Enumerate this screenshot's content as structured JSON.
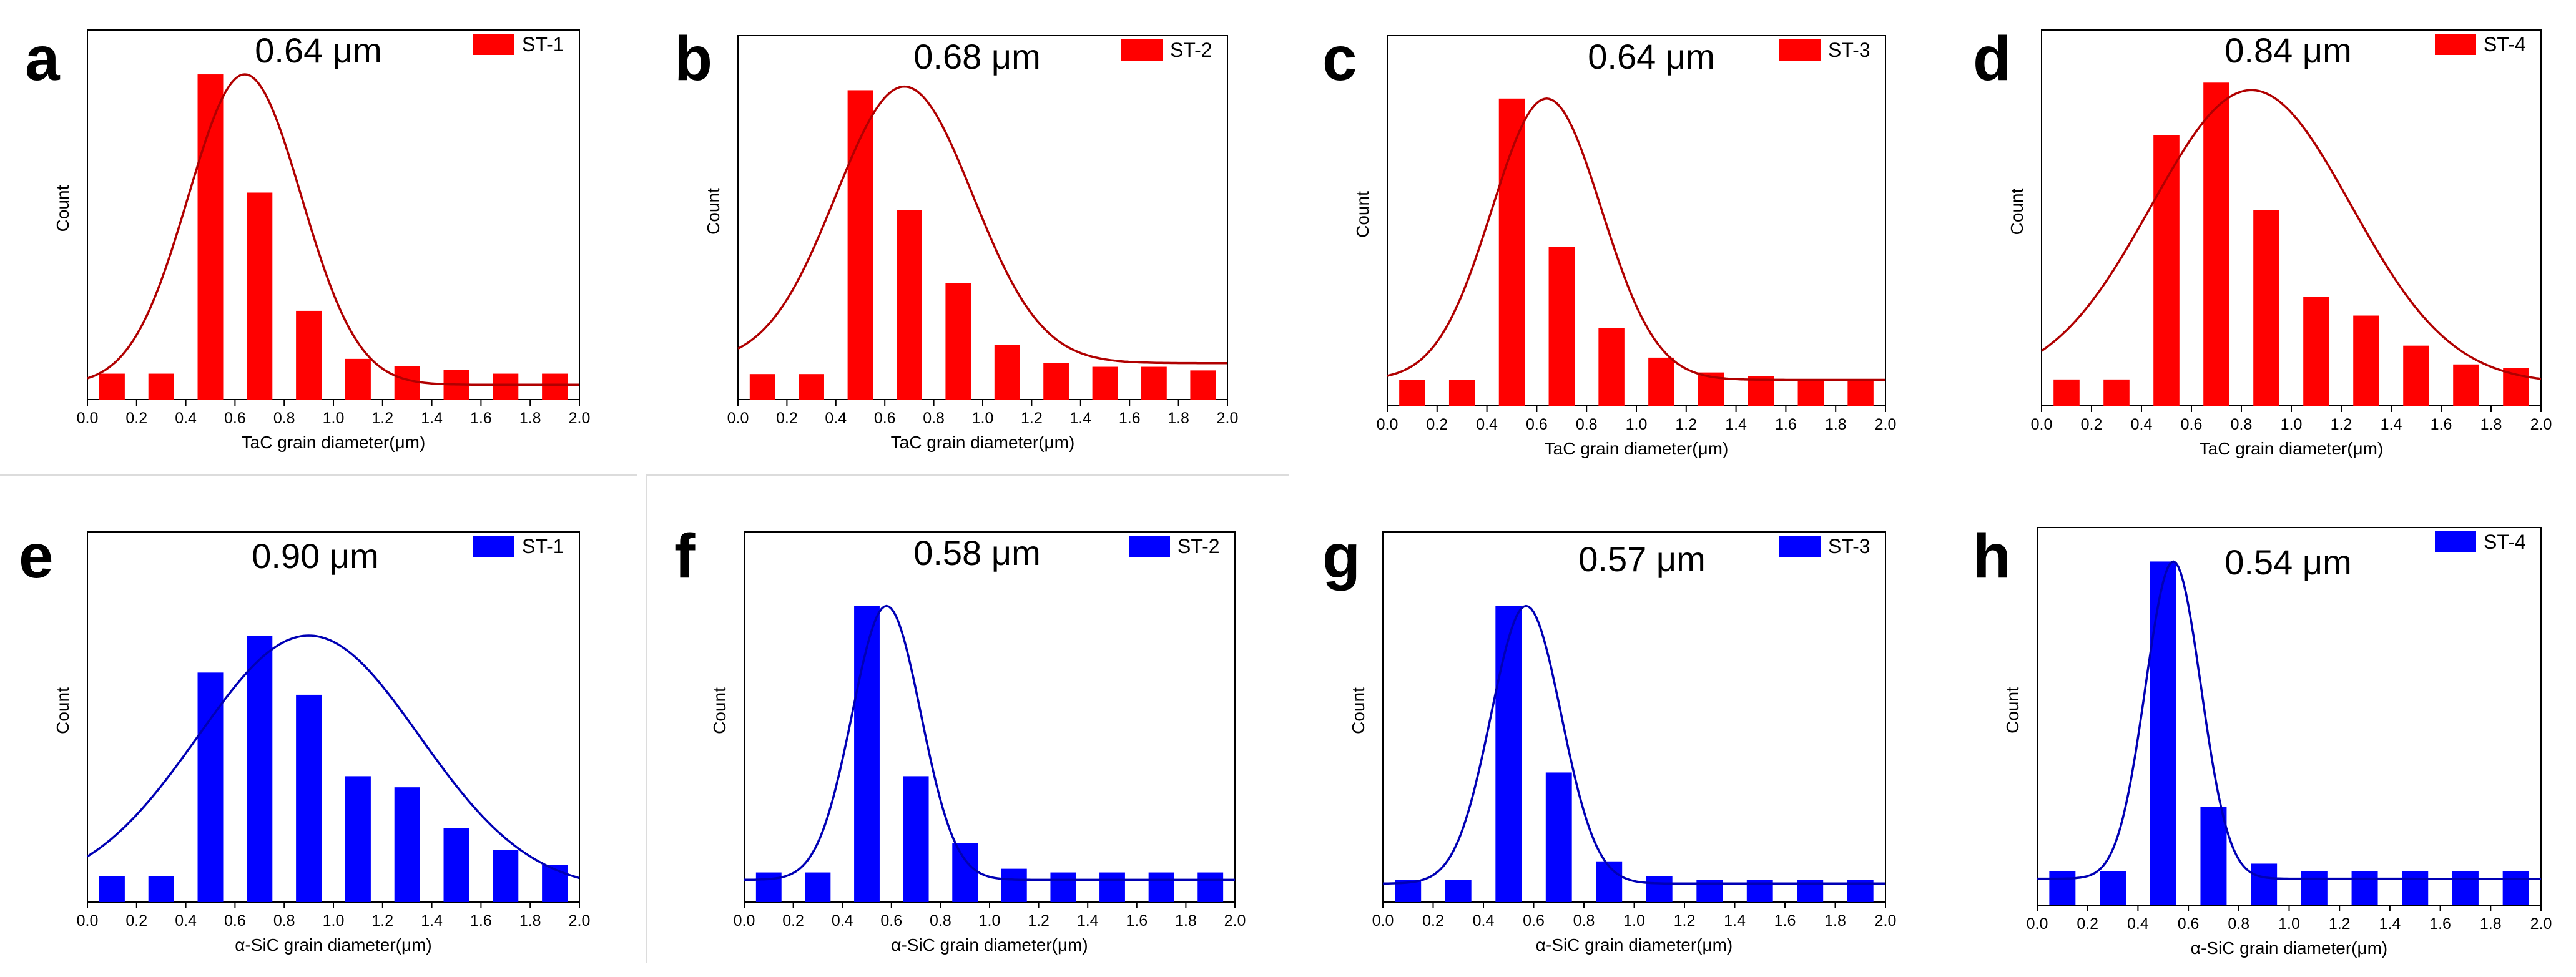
{
  "chart_data": [
    {
      "panel": "a",
      "type": "bar",
      "title": "0.64 μm",
      "legend": "ST-1",
      "color": "#ff0000",
      "xlabel": "TaC grain diameter(μm)",
      "ylabel": "Count",
      "xlim": [
        0.0,
        2.0
      ],
      "ylim": [
        0,
        100
      ],
      "x_ticks": [
        "0.0",
        "0.2",
        "0.4",
        "0.6",
        "0.8",
        "1.0",
        "1.2",
        "1.4",
        "1.6",
        "1.8",
        "2.0"
      ],
      "bin_centers": [
        0.1,
        0.3,
        0.5,
        0.7,
        0.9,
        1.1,
        1.3,
        1.5,
        1.7,
        1.9
      ],
      "values": [
        7,
        7,
        88,
        56,
        24,
        11,
        9,
        8,
        7,
        7
      ],
      "fit": {
        "type": "gaussian",
        "mean": 0.64,
        "sigma": 0.23,
        "peak": 88,
        "baseline": 4
      }
    },
    {
      "panel": "b",
      "type": "bar",
      "title": "0.68 μm",
      "legend": "ST-2",
      "color": "#ff0000",
      "xlabel": "TaC grain diameter(μm)",
      "ylabel": "Count",
      "xlim": [
        0.0,
        2.0
      ],
      "ylim": [
        0,
        100
      ],
      "x_ticks": [
        "0.0",
        "0.2",
        "0.4",
        "0.6",
        "0.8",
        "1.0",
        "1.2",
        "1.4",
        "1.6",
        "1.8",
        "2.0"
      ],
      "bin_centers": [
        0.1,
        0.3,
        0.5,
        0.7,
        0.9,
        1.1,
        1.3,
        1.5,
        1.7,
        1.9
      ],
      "values": [
        7,
        7,
        85,
        52,
        32,
        15,
        10,
        9,
        9,
        8
      ],
      "fit": {
        "type": "gaussian",
        "mean": 0.68,
        "sigma": 0.28,
        "peak": 86,
        "baseline": 10
      }
    },
    {
      "panel": "c",
      "type": "bar",
      "title": "0.64 μm",
      "legend": "ST-3",
      "color": "#ff0000",
      "xlabel": "TaC grain diameter(μm)",
      "ylabel": "Count",
      "xlim": [
        0.0,
        2.0
      ],
      "ylim": [
        0,
        100
      ],
      "x_ticks": [
        "0.0",
        "0.2",
        "0.4",
        "0.6",
        "0.8",
        "1.0",
        "1.2",
        "1.4",
        "1.6",
        "1.8",
        "2.0"
      ],
      "bin_centers": [
        0.1,
        0.3,
        0.5,
        0.7,
        0.9,
        1.1,
        1.3,
        1.5,
        1.7,
        1.9
      ],
      "values": [
        7,
        7,
        83,
        43,
        21,
        13,
        9,
        8,
        7,
        7
      ],
      "fit": {
        "type": "gaussian",
        "mean": 0.64,
        "sigma": 0.22,
        "peak": 83,
        "baseline": 7
      }
    },
    {
      "panel": "d",
      "type": "bar",
      "title": "0.84 μm",
      "legend": "ST-4",
      "color": "#ff0000",
      "xlabel": "TaC grain diameter(μm)",
      "ylabel": "Count",
      "xlim": [
        0.0,
        2.0
      ],
      "ylim": [
        0,
        100
      ],
      "x_ticks": [
        "0.0",
        "0.2",
        "0.4",
        "0.6",
        "0.8",
        "1.0",
        "1.2",
        "1.4",
        "1.6",
        "1.8",
        "2.0"
      ],
      "bin_centers": [
        0.1,
        0.3,
        0.5,
        0.7,
        0.9,
        1.1,
        1.3,
        1.5,
        1.7,
        1.9
      ],
      "values": [
        7,
        7,
        72,
        86,
        52,
        29,
        24,
        16,
        11,
        10
      ],
      "fit": {
        "type": "gaussian",
        "mean": 0.84,
        "sigma": 0.4,
        "peak": 84,
        "baseline": 6
      }
    },
    {
      "panel": "e",
      "type": "bar",
      "title": "0.90 μm",
      "legend": "ST-1",
      "color": "#0000ff",
      "xlabel": "α-SiC grain diameter(μm)",
      "ylabel": "Count",
      "xlim": [
        0.0,
        2.0
      ],
      "ylim": [
        0,
        100
      ],
      "x_ticks": [
        "0.0",
        "0.2",
        "0.4",
        "0.6",
        "0.8",
        "1.0",
        "1.2",
        "1.4",
        "1.6",
        "1.8",
        "2.0"
      ],
      "bin_centers": [
        0.1,
        0.3,
        0.5,
        0.7,
        0.9,
        1.1,
        1.3,
        1.5,
        1.7,
        1.9
      ],
      "values": [
        7,
        7,
        62,
        72,
        56,
        34,
        31,
        20,
        14,
        10
      ],
      "fit": {
        "type": "gaussian",
        "mean": 0.9,
        "sigma": 0.45,
        "peak": 72,
        "baseline": 3
      }
    },
    {
      "panel": "f",
      "type": "bar",
      "title": "0.58 μm",
      "legend": "ST-2",
      "color": "#0000ff",
      "xlabel": "α-SiC grain diameter(μm)",
      "ylabel": "Count",
      "xlim": [
        0.0,
        2.0
      ],
      "ylim": [
        0,
        100
      ],
      "x_ticks": [
        "0.0",
        "0.2",
        "0.4",
        "0.6",
        "0.8",
        "1.0",
        "1.2",
        "1.4",
        "1.6",
        "1.8",
        "2.0"
      ],
      "bin_centers": [
        0.1,
        0.3,
        0.5,
        0.7,
        0.9,
        1.1,
        1.3,
        1.5,
        1.7,
        1.9
      ],
      "values": [
        8,
        8,
        80,
        34,
        16,
        9,
        8,
        8,
        8,
        8
      ],
      "fit": {
        "type": "gaussian",
        "mean": 0.58,
        "sigma": 0.14,
        "peak": 80,
        "baseline": 6
      }
    },
    {
      "panel": "g",
      "type": "bar",
      "title": "0.57 μm",
      "legend": "ST-3",
      "color": "#0000ff",
      "xlabel": "α-SiC grain diameter(μm)",
      "ylabel": "Count",
      "xlim": [
        0.0,
        2.0
      ],
      "ylim": [
        0,
        100
      ],
      "x_ticks": [
        "0.0",
        "0.2",
        "0.4",
        "0.6",
        "0.8",
        "1.0",
        "1.2",
        "1.4",
        "1.6",
        "1.8",
        "2.0"
      ],
      "bin_centers": [
        0.1,
        0.3,
        0.5,
        0.7,
        0.9,
        1.1,
        1.3,
        1.5,
        1.7,
        1.9
      ],
      "values": [
        6,
        6,
        80,
        35,
        11,
        7,
        6,
        6,
        6,
        6
      ],
      "fit": {
        "type": "gaussian",
        "mean": 0.57,
        "sigma": 0.14,
        "peak": 80,
        "baseline": 5
      }
    },
    {
      "panel": "h",
      "type": "bar",
      "title": "0.54 μm",
      "legend": "ST-4",
      "color": "#0000ff",
      "xlabel": "α-SiC grain diameter(μm)",
      "ylabel": "Count",
      "xlim": [
        0.0,
        2.0
      ],
      "ylim": [
        0,
        100
      ],
      "x_ticks": [
        "0.0",
        "0.2",
        "0.4",
        "0.6",
        "0.8",
        "1.0",
        "1.2",
        "1.4",
        "1.6",
        "1.8",
        "2.0"
      ],
      "bin_centers": [
        0.1,
        0.3,
        0.5,
        0.7,
        0.9,
        1.1,
        1.3,
        1.5,
        1.7,
        1.9
      ],
      "values": [
        9,
        9,
        91,
        26,
        11,
        9,
        9,
        9,
        9,
        9
      ],
      "fit": {
        "type": "gaussian",
        "mean": 0.54,
        "sigma": 0.11,
        "peak": 91,
        "baseline": 7
      }
    }
  ]
}
